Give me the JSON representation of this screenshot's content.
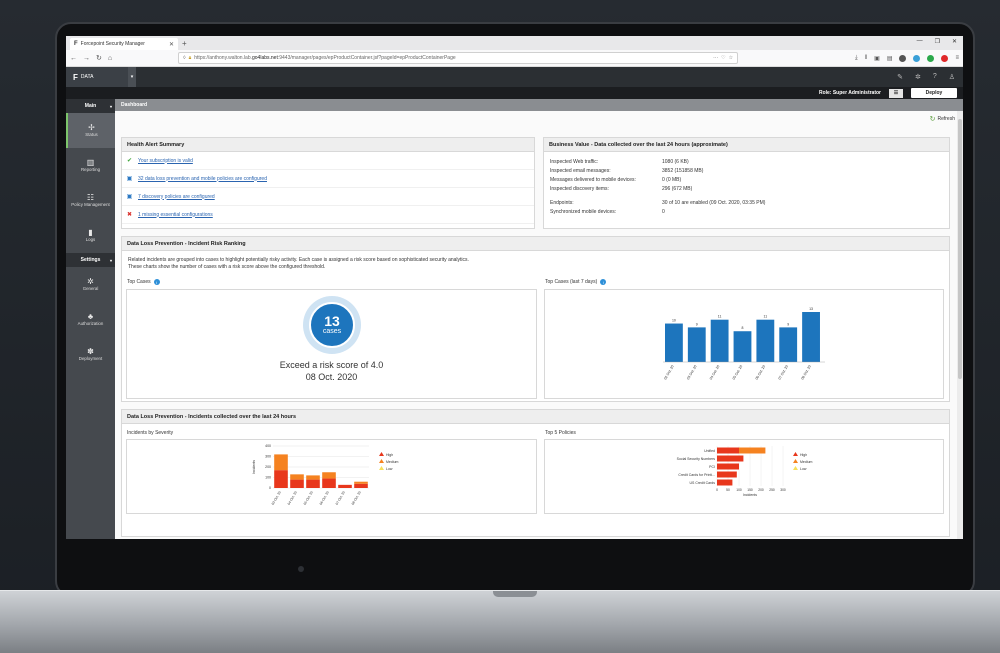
{
  "browser": {
    "tab_title": "Forcepoint Security Manager",
    "url_prefix": "https://anthony.walton.lab.",
    "url_domain": "go4labs.net",
    "url_suffix": ":9443/manager/pages/epProductContainer.jsf?pageId=epProductContainerPage",
    "window_controls": [
      "—",
      "❐",
      "✕"
    ]
  },
  "app": {
    "module_label": "DATA",
    "role_text": "Role: Super Administrator",
    "deploy_label": "Deploy",
    "breadcrumb": "Dashboard",
    "refresh_label": "Refresh"
  },
  "sidebar": {
    "main_section": "Main",
    "settings_section": "Settings",
    "main_items": [
      {
        "label": "Status",
        "icon": "status-icon"
      },
      {
        "label": "Reporting",
        "icon": "reporting-icon"
      },
      {
        "label": "Policy Management",
        "icon": "policy-icon"
      },
      {
        "label": "Logs",
        "icon": "logs-icon"
      }
    ],
    "settings_items": [
      {
        "label": "General",
        "icon": "gear-icon"
      },
      {
        "label": "Authorization",
        "icon": "users-icon"
      },
      {
        "label": "Deployment",
        "icon": "deployment-icon"
      }
    ]
  },
  "health": {
    "title": "Health Alert Summary",
    "alerts": [
      {
        "text": "Your subscription is valid",
        "status": "ok"
      },
      {
        "text": "32 data loss prevention and mobile policies are configured",
        "status": "info"
      },
      {
        "text": "7 discovery policies are configured",
        "status": "info"
      },
      {
        "text": "1 missing essential configurations",
        "status": "error"
      }
    ]
  },
  "business_value": {
    "title": "Business Value - Data collected over the last 24 hours (approximate)",
    "rows": [
      {
        "k": "Inspected Web traffic:",
        "v": "1080 (6 KB)"
      },
      {
        "k": "Inspected email messages:",
        "v": "3852 (151858 MB)"
      },
      {
        "k": "Messages delivered to mobile devices:",
        "v": "0 (0 MB)"
      },
      {
        "k": "Inspected discovery items:",
        "v": "296 (672 MB)"
      }
    ],
    "rows2": [
      {
        "k": "Endpoints:",
        "v": "30 of 10 are enabled (09 Oct. 2020, 03:35 PM)"
      },
      {
        "k": "Synchronized mobile devices:",
        "v": "0"
      }
    ]
  },
  "risk_ranking": {
    "title": "Data Loss Prevention - Incident Risk Ranking",
    "desc1": "Related incidents are grouped into cases to highlight potentially risky activity. Each case is assigned a risk score based on sophisticated security analytics.",
    "desc2": "These charts show the number of cases with a risk score above the configured threshold.",
    "top_cases_label": "Top Cases",
    "top_cases_7_label": "Top Cases (last 7 days)",
    "cases_count": "13",
    "cases_word": "cases",
    "risk_line": "Exceed a risk score of 4.0",
    "date_line": "08 Oct. 2020"
  },
  "incidents_24h": {
    "title": "Data Loss Prevention - Incidents collected over the last 24 hours",
    "severity_label": "Incidents by Severity",
    "policies_label": "Top 5 Policies"
  },
  "chart_data": [
    {
      "type": "bar",
      "title": "Top Cases (last 7 days)",
      "categories": [
        "02 Oct. 20",
        "03 Oct. 20",
        "04 Oct. 20",
        "05 Oct. 20",
        "06 Oct. 20",
        "07 Oct. 20",
        "08 Oct. 20"
      ],
      "values": [
        10,
        9,
        11,
        8,
        11,
        9,
        13
      ],
      "color": "#1d75bd"
    },
    {
      "type": "bar",
      "title": "Incidents by Severity",
      "ylabel": "Incidents",
      "ylim": [
        0,
        400
      ],
      "yticks": [
        0,
        100,
        200,
        300,
        400
      ],
      "categories": [
        "03 Oct. 20",
        "04 Oct. 20",
        "05 Oct. 20",
        "06 Oct. 20",
        "07 Oct. 20",
        "08 Oct. 20"
      ],
      "series": [
        {
          "name": "High",
          "values": [
            170,
            80,
            80,
            90,
            30,
            40
          ],
          "color": "#e8371c"
        },
        {
          "name": "Medium",
          "values": [
            150,
            50,
            40,
            60,
            0,
            20
          ],
          "color": "#f58220"
        },
        {
          "name": "Low",
          "values": [
            0,
            0,
            0,
            0,
            0,
            0
          ],
          "color": "#f7e05c"
        }
      ],
      "legend": "right"
    },
    {
      "type": "bar",
      "orientation": "horizontal",
      "title": "Top 5 Policies",
      "xlabel": "Incidents",
      "xlim": [
        0,
        300
      ],
      "xticks": [
        0,
        50,
        100,
        150,
        200,
        250,
        300
      ],
      "categories": [
        "Unified",
        "Social Security Numbers",
        "PCI",
        "Credit Cards for Printi...",
        "US Credit Cards"
      ],
      "series": [
        {
          "name": "High",
          "values": [
            100,
            120,
            100,
            90,
            70
          ],
          "color": "#e8371c"
        },
        {
          "name": "Medium",
          "values": [
            120,
            0,
            0,
            0,
            0
          ],
          "color": "#f58220"
        },
        {
          "name": "Low",
          "values": [
            0,
            0,
            0,
            0,
            0
          ],
          "color": "#f7e05c"
        }
      ],
      "legend": "right"
    }
  ]
}
